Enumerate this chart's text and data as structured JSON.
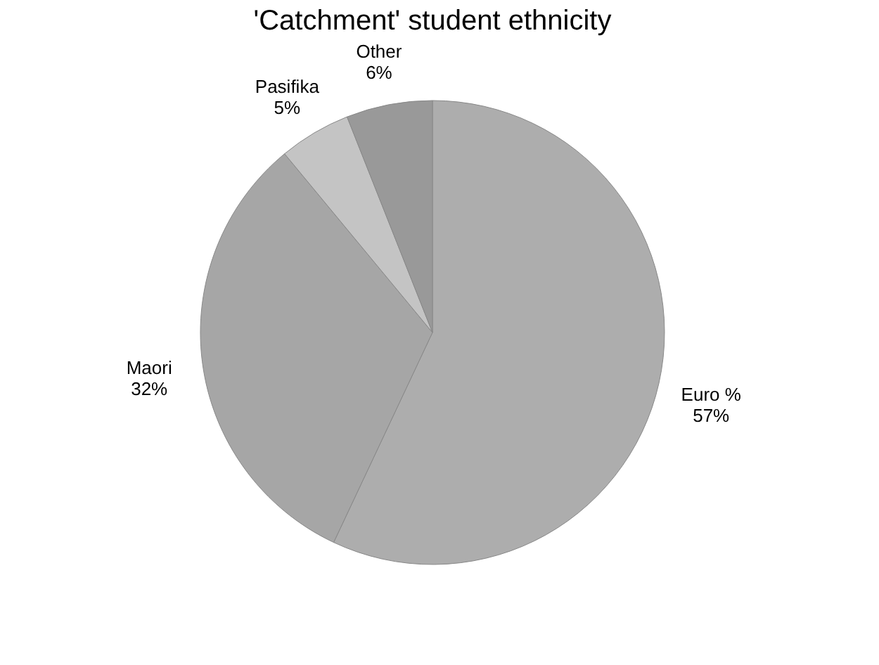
{
  "chart_data": {
    "type": "pie",
    "title": "'Catchment' student ethnicity",
    "categories": [
      "Euro %",
      "Maori",
      "Pasifika",
      "Other"
    ],
    "values": [
      57,
      32,
      5,
      6
    ],
    "value_labels": [
      "57%",
      "32%",
      "5%",
      "6%"
    ],
    "colors": [
      "#adadad",
      "#a6a6a6",
      "#c4c4c4",
      "#999999"
    ],
    "legend": false
  }
}
